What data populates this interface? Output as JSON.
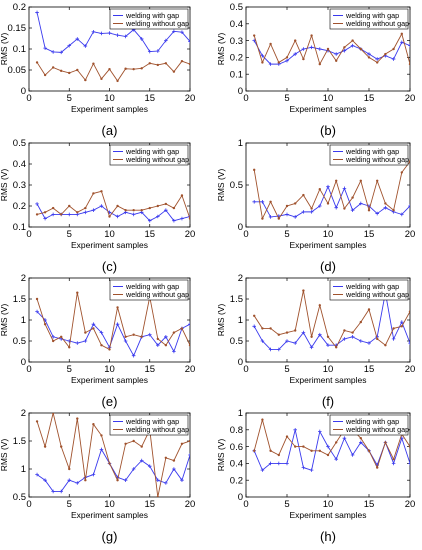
{
  "colors": {
    "with_gap": "#3a3aee",
    "without_gap": "#a0522d",
    "axis": "#000000"
  },
  "chart_data": [
    {
      "panel": "(a)",
      "type": "line",
      "ylabel": "RMS (V)",
      "xlabel": "Experiment samples",
      "xlim": [
        0,
        20
      ],
      "ylim": [
        0,
        0.2
      ],
      "xticks": [
        0,
        5,
        10,
        15,
        20
      ],
      "yticks": [
        0,
        0.05,
        0.1,
        0.15,
        0.2
      ],
      "ytick_labels": [
        "0",
        "0.05",
        "0.1",
        "0.15",
        "0.2"
      ],
      "x": [
        1,
        2,
        3,
        4,
        5,
        6,
        7,
        8,
        9,
        10,
        11,
        12,
        13,
        14,
        15,
        16,
        17,
        18,
        19,
        20
      ],
      "series": [
        {
          "name": "welding with gap",
          "values": [
            0.187,
            0.102,
            0.093,
            0.092,
            0.108,
            0.124,
            0.107,
            0.141,
            0.137,
            0.138,
            0.133,
            0.13,
            0.146,
            0.124,
            0.094,
            0.095,
            0.12,
            0.142,
            0.14,
            0.118
          ]
        },
        {
          "name": "welding without gap",
          "values": [
            0.068,
            0.038,
            0.056,
            0.048,
            0.043,
            0.05,
            0.026,
            0.065,
            0.029,
            0.052,
            0.024,
            0.053,
            0.052,
            0.054,
            0.066,
            0.062,
            0.066,
            0.046,
            0.071,
            0.064
          ]
        }
      ],
      "legend": "top-right"
    },
    {
      "panel": "(b)",
      "type": "line",
      "ylabel": "RMS (V)",
      "xlabel": "Experiment samples",
      "xlim": [
        0,
        20
      ],
      "ylim": [
        0,
        0.5
      ],
      "xticks": [
        0,
        5,
        10,
        15,
        20
      ],
      "yticks": [
        0,
        0.1,
        0.2,
        0.3,
        0.4,
        0.5
      ],
      "ytick_labels": [
        "0",
        "0.1",
        "0.2",
        "0.3",
        "0.4",
        "0.5"
      ],
      "x": [
        1,
        2,
        3,
        4,
        5,
        6,
        7,
        8,
        9,
        10,
        11,
        12,
        13,
        14,
        15,
        16,
        17,
        18,
        19,
        20
      ],
      "series": [
        {
          "name": "welding with gap",
          "values": [
            0.3,
            0.21,
            0.16,
            0.16,
            0.18,
            0.22,
            0.25,
            0.26,
            0.25,
            0.24,
            0.22,
            0.24,
            0.27,
            0.25,
            0.22,
            0.19,
            0.21,
            0.19,
            0.29,
            0.27
          ]
        },
        {
          "name": "welding without gap",
          "values": [
            0.33,
            0.17,
            0.28,
            0.17,
            0.2,
            0.3,
            0.19,
            0.33,
            0.16,
            0.25,
            0.18,
            0.26,
            0.3,
            0.25,
            0.2,
            0.17,
            0.22,
            0.25,
            0.34,
            0.16
          ]
        }
      ],
      "legend": "top-right"
    },
    {
      "panel": "(c)",
      "type": "line",
      "ylabel": "RMS (V)",
      "xlabel": "Experiment samples",
      "xlim": [
        0,
        20
      ],
      "ylim": [
        0.1,
        0.5
      ],
      "xticks": [
        0,
        5,
        10,
        15,
        20
      ],
      "yticks": [
        0.1,
        0.2,
        0.3,
        0.4,
        0.5
      ],
      "ytick_labels": [
        "0.1",
        "0.2",
        "0.3",
        "0.4",
        "0.5"
      ],
      "x": [
        1,
        2,
        3,
        4,
        5,
        6,
        7,
        8,
        9,
        10,
        11,
        12,
        13,
        14,
        15,
        16,
        17,
        18,
        19,
        20
      ],
      "series": [
        {
          "name": "welding with gap",
          "values": [
            0.21,
            0.14,
            0.16,
            0.16,
            0.16,
            0.16,
            0.17,
            0.18,
            0.2,
            0.17,
            0.15,
            0.17,
            0.16,
            0.17,
            0.13,
            0.15,
            0.18,
            0.13,
            0.14,
            0.15
          ]
        },
        {
          "name": "welding without gap",
          "values": [
            0.16,
            0.17,
            0.19,
            0.16,
            0.2,
            0.17,
            0.19,
            0.26,
            0.27,
            0.15,
            0.2,
            0.18,
            0.18,
            0.18,
            0.19,
            0.2,
            0.21,
            0.19,
            0.25,
            0.14
          ]
        }
      ],
      "legend": "top-right"
    },
    {
      "panel": "(d)",
      "type": "line",
      "ylabel": "RMS (V)",
      "xlabel": "Experiment samples",
      "xlim": [
        0,
        20
      ],
      "ylim": [
        0,
        1
      ],
      "xticks": [
        0,
        5,
        10,
        15,
        20
      ],
      "yticks": [
        0,
        0.5,
        1
      ],
      "ytick_labels": [
        "0",
        "0.5",
        "1"
      ],
      "x": [
        1,
        2,
        3,
        4,
        5,
        6,
        7,
        8,
        9,
        10,
        11,
        12,
        13,
        14,
        15,
        16,
        17,
        18,
        19,
        20
      ],
      "series": [
        {
          "name": "welding with gap",
          "values": [
            0.3,
            0.3,
            0.12,
            0.13,
            0.15,
            0.12,
            0.18,
            0.18,
            0.25,
            0.48,
            0.23,
            0.46,
            0.2,
            0.28,
            0.25,
            0.16,
            0.23,
            0.18,
            0.15,
            0.25
          ]
        },
        {
          "name": "welding without gap",
          "values": [
            0.68,
            0.1,
            0.3,
            0.1,
            0.25,
            0.28,
            0.38,
            0.22,
            0.45,
            0.28,
            0.55,
            0.22,
            0.35,
            0.55,
            0.2,
            0.55,
            0.28,
            0.2,
            0.65,
            0.78
          ]
        }
      ],
      "legend": "top-right"
    },
    {
      "panel": "(e)",
      "type": "line",
      "ylabel": "RMS (V)",
      "xlabel": "Experiment samples",
      "xlim": [
        0,
        20
      ],
      "ylim": [
        0,
        2
      ],
      "xticks": [
        0,
        5,
        10,
        15,
        20
      ],
      "yticks": [
        0,
        0.5,
        1,
        1.5,
        2
      ],
      "ytick_labels": [
        "0",
        "0.5",
        "1",
        "1.5",
        "2"
      ],
      "x": [
        1,
        2,
        3,
        4,
        5,
        6,
        7,
        8,
        9,
        10,
        11,
        12,
        13,
        14,
        15,
        16,
        17,
        18,
        19,
        20
      ],
      "series": [
        {
          "name": "welding with gap",
          "values": [
            1.2,
            1.0,
            0.6,
            0.55,
            0.5,
            0.45,
            0.5,
            0.9,
            0.7,
            0.35,
            0.9,
            0.5,
            0.15,
            0.6,
            0.65,
            0.4,
            0.6,
            0.25,
            0.8,
            0.9
          ]
        },
        {
          "name": "welding without gap",
          "values": [
            1.5,
            0.9,
            0.5,
            0.6,
            0.35,
            1.65,
            0.7,
            0.8,
            0.4,
            0.3,
            1.3,
            0.6,
            0.65,
            0.6,
            1.55,
            0.55,
            0.4,
            0.7,
            0.8,
            0.4
          ]
        }
      ],
      "legend": "top-right"
    },
    {
      "panel": "(f)",
      "type": "line",
      "ylabel": "RMS (V)",
      "xlabel": "Experiment samples",
      "xlim": [
        0,
        20
      ],
      "ylim": [
        0,
        2
      ],
      "xticks": [
        0,
        5,
        10,
        15,
        20
      ],
      "yticks": [
        0,
        0.5,
        1,
        1.5,
        2
      ],
      "ytick_labels": [
        "0",
        "0.5",
        "1",
        "1.5",
        "2"
      ],
      "x": [
        1,
        2,
        3,
        4,
        5,
        6,
        7,
        8,
        9,
        10,
        11,
        12,
        13,
        14,
        15,
        16,
        17,
        18,
        19,
        20
      ],
      "series": [
        {
          "name": "welding with gap",
          "values": [
            0.85,
            0.5,
            0.3,
            0.3,
            0.5,
            0.45,
            0.7,
            0.35,
            0.65,
            0.4,
            0.4,
            0.55,
            0.6,
            0.5,
            0.45,
            0.6,
            1.65,
            0.55,
            0.95,
            0.45
          ]
        },
        {
          "name": "welding without gap",
          "values": [
            1.1,
            0.8,
            0.8,
            0.65,
            0.7,
            0.75,
            1.7,
            0.6,
            1.35,
            0.6,
            0.35,
            0.75,
            0.7,
            0.95,
            1.25,
            0.55,
            0.4,
            0.8,
            0.85,
            1.2
          ]
        }
      ],
      "legend": "top-right"
    },
    {
      "panel": "(g)",
      "type": "line",
      "ylabel": "RMS (V)",
      "xlabel": "Experiment samples",
      "xlim": [
        0,
        20
      ],
      "ylim": [
        0.5,
        2
      ],
      "xticks": [
        0,
        5,
        10,
        15,
        20
      ],
      "yticks": [
        0.5,
        1,
        1.5,
        2
      ],
      "ytick_labels": [
        "0.5",
        "1",
        "1.5",
        "2"
      ],
      "x": [
        1,
        2,
        3,
        4,
        5,
        6,
        7,
        8,
        9,
        10,
        11,
        12,
        13,
        14,
        15,
        16,
        17,
        18,
        19,
        20
      ],
      "series": [
        {
          "name": "welding with gap",
          "values": [
            0.9,
            0.8,
            0.6,
            0.6,
            0.8,
            0.75,
            0.85,
            0.9,
            1.35,
            1.1,
            0.85,
            0.8,
            1.0,
            1.15,
            1.05,
            0.8,
            0.75,
            1.0,
            0.8,
            1.25
          ]
        },
        {
          "name": "welding without gap",
          "values": [
            1.85,
            1.4,
            2.0,
            1.4,
            1.0,
            1.9,
            0.8,
            1.8,
            1.6,
            1.1,
            0.8,
            1.45,
            1.5,
            1.4,
            1.7,
            0.5,
            1.2,
            1.15,
            1.45,
            1.5
          ]
        }
      ],
      "legend": "top-right"
    },
    {
      "panel": "(h)",
      "type": "line",
      "ylabel": "RMS (V)",
      "xlabel": "Experiment samples",
      "xlim": [
        0,
        20
      ],
      "ylim": [
        0,
        1
      ],
      "xticks": [
        0,
        5,
        10,
        15,
        20
      ],
      "yticks": [
        0,
        0.2,
        0.4,
        0.6,
        0.8,
        1
      ],
      "ytick_labels": [
        "0",
        "0.2",
        "0.4",
        "0.6",
        "0.8",
        "1"
      ],
      "x": [
        1,
        2,
        3,
        4,
        5,
        6,
        7,
        8,
        9,
        10,
        11,
        12,
        13,
        14,
        15,
        16,
        17,
        18,
        19,
        20
      ],
      "series": [
        {
          "name": "welding with gap",
          "values": [
            0.55,
            0.32,
            0.4,
            0.4,
            0.4,
            0.8,
            0.35,
            0.32,
            0.78,
            0.6,
            0.45,
            0.7,
            0.5,
            0.65,
            0.55,
            0.38,
            0.65,
            0.4,
            0.7,
            0.4
          ]
        },
        {
          "name": "welding without gap",
          "values": [
            0.55,
            0.92,
            0.55,
            0.5,
            0.72,
            0.6,
            0.6,
            0.55,
            0.55,
            0.5,
            0.65,
            0.8,
            0.8,
            0.7,
            0.55,
            0.35,
            0.65,
            0.45,
            0.75,
            0.6
          ]
        }
      ],
      "legend": "top-right"
    }
  ]
}
